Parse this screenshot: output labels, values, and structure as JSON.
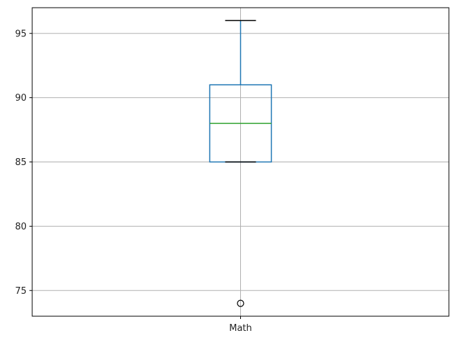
{
  "chart_data": {
    "type": "box",
    "title": "",
    "xlabel": "",
    "ylabel": "",
    "ylim": [
      73,
      97
    ],
    "yticks": [
      75,
      80,
      85,
      90,
      95
    ],
    "grid": true,
    "categories": [
      "Math"
    ],
    "boxes": [
      {
        "category": "Math",
        "whisker_low": 85,
        "q1": 85,
        "median": 88,
        "q3": 91,
        "whisker_high": 96,
        "outliers": [
          74
        ]
      }
    ]
  },
  "colors": {
    "box": "#1f77b4",
    "median": "#2ca02c",
    "whisker_cap": "#000000",
    "grid": "#b0b0b0",
    "outlier": "#000000"
  }
}
